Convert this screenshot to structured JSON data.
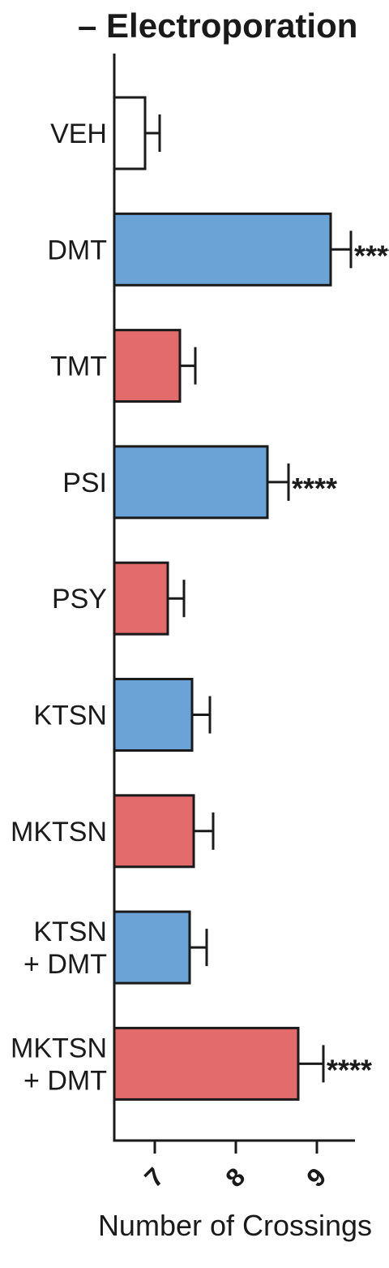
{
  "chart_data": {
    "type": "bar",
    "orientation": "horizontal",
    "title": "– Electroporation",
    "xlabel": "Number of Crossings",
    "ylabel": "",
    "xlim": [
      6.5,
      9.5
    ],
    "xticks": [
      7,
      8,
      9
    ],
    "categories": [
      [
        "VEH"
      ],
      [
        "DMT"
      ],
      [
        "TMT"
      ],
      [
        "PSI"
      ],
      [
        "PSY"
      ],
      [
        "KTSN"
      ],
      [
        "MKTSN"
      ],
      [
        "KTSN",
        "+ DMT"
      ],
      [
        "MKTSN",
        "+ DMT"
      ]
    ],
    "values": [
      6.88,
      9.17,
      7.31,
      8.39,
      7.16,
      7.46,
      7.48,
      7.43,
      8.77
    ],
    "errors": [
      0.18,
      0.25,
      0.19,
      0.26,
      0.2,
      0.22,
      0.24,
      0.21,
      0.31
    ],
    "colors": [
      "#ffffff",
      "#6ca3d6",
      "#e46b6b",
      "#6ca3d6",
      "#e46b6b",
      "#6ca3d6",
      "#e46b6b",
      "#6ca3d6",
      "#e46b6b"
    ],
    "significance": [
      "",
      "****",
      "",
      "****",
      "",
      "",
      "",
      "",
      "****"
    ],
    "grid": false,
    "legend": "none"
  }
}
